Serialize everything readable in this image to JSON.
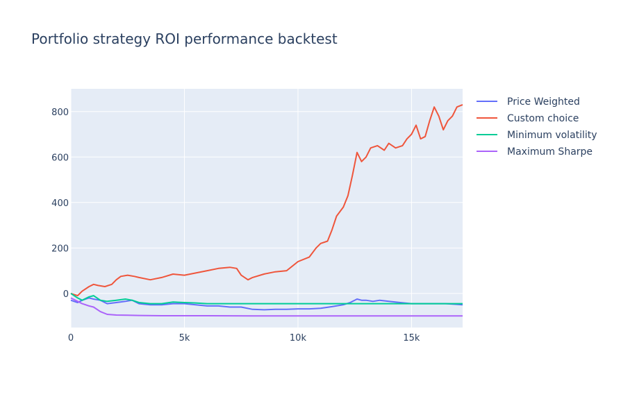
{
  "chart_data": {
    "type": "line",
    "title": "Portfolio strategy ROI performance backtest",
    "xlabel": "",
    "ylabel": "",
    "xlim": [
      0,
      17250
    ],
    "ylim": [
      -150,
      900
    ],
    "x_ticks": [
      {
        "value": 0,
        "label": "0"
      },
      {
        "value": 5000,
        "label": "5k"
      },
      {
        "value": 10000,
        "label": "10k"
      },
      {
        "value": 15000,
        "label": "15k"
      }
    ],
    "y_ticks": [
      {
        "value": 0,
        "label": "0"
      },
      {
        "value": 200,
        "label": "200"
      },
      {
        "value": 400,
        "label": "400"
      },
      {
        "value": 600,
        "label": "600"
      },
      {
        "value": 800,
        "label": "800"
      }
    ],
    "grid": true,
    "legend_position": "right",
    "plot_background": "#e5ecf6",
    "series": [
      {
        "name": "Price Weighted",
        "color": "#636efa",
        "x": [
          0,
          300,
          500,
          800,
          1000,
          1300,
          1600,
          2000,
          2400,
          2700,
          3000,
          3500,
          4000,
          4500,
          5000,
          5500,
          6000,
          6500,
          7000,
          7500,
          8000,
          8500,
          9000,
          9500,
          10000,
          10500,
          11000,
          11500,
          12000,
          12300,
          12600,
          12800,
          13000,
          13300,
          13600,
          14000,
          14500,
          15000,
          15500,
          16000,
          16500,
          17000,
          17250
        ],
        "y": [
          -30,
          -40,
          -30,
          -20,
          -25,
          -30,
          -45,
          -40,
          -35,
          -30,
          -45,
          -50,
          -50,
          -45,
          -45,
          -50,
          -55,
          -55,
          -60,
          -60,
          -70,
          -72,
          -70,
          -70,
          -68,
          -68,
          -65,
          -58,
          -50,
          -40,
          -25,
          -30,
          -30,
          -35,
          -30,
          -35,
          -40,
          -45,
          -45,
          -45,
          -45,
          -48,
          -50
        ]
      },
      {
        "name": "Custom choice",
        "color": "#ef553b",
        "x": [
          0,
          300,
          500,
          800,
          1000,
          1200,
          1500,
          1800,
          2000,
          2200,
          2500,
          2800,
          3000,
          3500,
          4000,
          4500,
          5000,
          5500,
          6000,
          6500,
          7000,
          7300,
          7500,
          7800,
          8000,
          8500,
          9000,
          9500,
          10000,
          10500,
          10800,
          11000,
          11300,
          11500,
          11700,
          12000,
          12200,
          12400,
          12600,
          12800,
          13000,
          13200,
          13500,
          13800,
          14000,
          14300,
          14600,
          14800,
          15000,
          15200,
          15400,
          15600,
          15800,
          16000,
          16200,
          16400,
          16600,
          16800,
          17000,
          17250
        ],
        "y": [
          0,
          -10,
          10,
          30,
          40,
          35,
          30,
          40,
          60,
          75,
          80,
          75,
          70,
          60,
          70,
          85,
          80,
          90,
          100,
          110,
          115,
          110,
          80,
          60,
          70,
          85,
          95,
          100,
          140,
          160,
          200,
          220,
          230,
          280,
          340,
          380,
          430,
          520,
          620,
          580,
          600,
          640,
          650,
          630,
          660,
          640,
          650,
          680,
          700,
          740,
          680,
          690,
          760,
          820,
          780,
          720,
          760,
          780,
          820,
          830
        ]
      },
      {
        "name": "Minimum volatility",
        "color": "#00cc96",
        "x": [
          0,
          300,
          500,
          800,
          1000,
          1300,
          1600,
          2000,
          2400,
          2700,
          3000,
          3500,
          4000,
          4500,
          5000,
          5500,
          6000,
          6500,
          7000,
          8000,
          9000,
          10000,
          11000,
          12000,
          13000,
          14000,
          15000,
          16000,
          17000,
          17250
        ],
        "y": [
          0,
          -20,
          -30,
          -15,
          -10,
          -30,
          -35,
          -30,
          -25,
          -30,
          -40,
          -45,
          -45,
          -38,
          -40,
          -42,
          -45,
          -45,
          -45,
          -45,
          -45,
          -45,
          -45,
          -45,
          -45,
          -45,
          -45,
          -45,
          -45,
          -45
        ]
      },
      {
        "name": "Maximum Sharpe",
        "color": "#ab63fa",
        "x": [
          0,
          300,
          500,
          800,
          1000,
          1300,
          1600,
          2000,
          2500,
          3000,
          4000,
          5000,
          6000,
          8000,
          10000,
          12000,
          14000,
          16000,
          17250
        ],
        "y": [
          -20,
          -35,
          -45,
          -55,
          -60,
          -80,
          -92,
          -95,
          -96,
          -97,
          -98,
          -98,
          -98,
          -99,
          -99,
          -99,
          -99,
          -99,
          -99
        ]
      }
    ]
  }
}
